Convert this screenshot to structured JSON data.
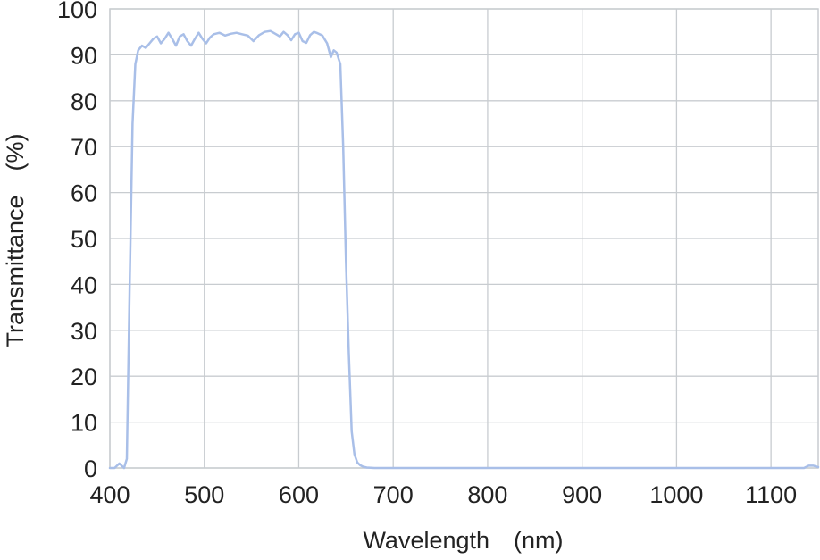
{
  "chart_data": {
    "type": "line",
    "title": "",
    "xlabel": "Wavelength　(nm)",
    "ylabel": "Transmittance　(%)",
    "xlim": [
      400,
      1150
    ],
    "ylim": [
      0,
      100
    ],
    "grid": true,
    "xticks": [
      400,
      500,
      600,
      700,
      800,
      900,
      1000,
      1100
    ],
    "yticks": [
      0,
      10,
      20,
      30,
      40,
      50,
      60,
      70,
      80,
      90,
      100
    ],
    "series": [
      {
        "color": "#a9bfe8",
        "x": [
          400,
          405,
          410,
          415,
          418,
          421,
          424,
          427,
          430,
          434,
          438,
          442,
          446,
          450,
          454,
          458,
          462,
          466,
          470,
          474,
          478,
          482,
          486,
          490,
          494,
          498,
          502,
          506,
          510,
          516,
          522,
          528,
          534,
          540,
          546,
          552,
          558,
          564,
          570,
          576,
          580,
          584,
          588,
          592,
          596,
          600,
          604,
          608,
          612,
          616,
          620,
          625,
          630,
          634,
          637,
          640,
          644,
          647,
          650,
          653,
          656,
          659,
          662,
          665,
          668,
          672,
          680,
          700,
          800,
          900,
          1000,
          1100,
          1135,
          1140,
          1145,
          1150
        ],
        "y": [
          0,
          0,
          1,
          0,
          2,
          40,
          75,
          88,
          91,
          92,
          91.5,
          92.5,
          93.5,
          94,
          92.5,
          93.5,
          94.8,
          93.5,
          92,
          94,
          94.5,
          93,
          92,
          93.5,
          94.8,
          93.5,
          92.5,
          93.8,
          94.5,
          94.8,
          94.2,
          94.6,
          94.8,
          94.5,
          94.2,
          93,
          94.3,
          95,
          95.2,
          94.5,
          94,
          95,
          94.3,
          93.2,
          94.5,
          94.8,
          93,
          92.6,
          94.3,
          95,
          94.7,
          94.2,
          92.5,
          89.5,
          91,
          90.5,
          88,
          70,
          45,
          25,
          8,
          3,
          1.2,
          0.6,
          0.3,
          0.1,
          0,
          0,
          0,
          0,
          0,
          0,
          0,
          0.5,
          0.5,
          0.2
        ]
      }
    ]
  }
}
